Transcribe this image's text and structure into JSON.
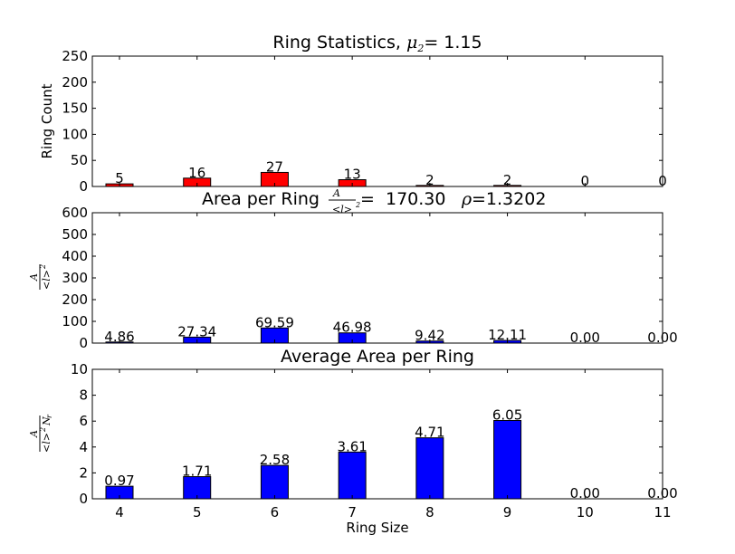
{
  "chart_data": [
    {
      "type": "bar",
      "title": "Ring Statistics, ",
      "title_math": "μ",
      "title_math_sub": "2",
      "title_suffix": "=  1.15",
      "ylabel": "Ring Count",
      "xlabel": "",
      "categories": [
        "4",
        "5",
        "6",
        "7",
        "8",
        "9",
        "10",
        "11"
      ],
      "values": [
        5,
        16,
        27,
        13,
        2,
        2,
        0,
        0
      ],
      "data_labels": [
        "5",
        "16",
        "27",
        "13",
        "2",
        "2",
        "0",
        "0"
      ],
      "ylim": [
        0,
        250
      ],
      "yticks": [
        "0",
        "50",
        "100",
        "150",
        "200",
        "250"
      ],
      "color": "#ff0000",
      "grid": false
    },
    {
      "type": "bar",
      "title": "Area per Ring ",
      "title_math_num": "A",
      "title_math_den": "<l>",
      "title_math_den_sup": "2",
      "title_suffix": "=  170.30 ",
      "title_rho": "ρ",
      "title_rho_value": "=1.3202",
      "ylabel_num": "A",
      "ylabel_den": "<l>",
      "ylabel_den_sup": "2",
      "xlabel": "",
      "categories": [
        "4",
        "5",
        "6",
        "7",
        "8",
        "9",
        "10",
        "11"
      ],
      "values": [
        4.86,
        27.34,
        69.59,
        46.98,
        9.42,
        12.11,
        0.0,
        0.0
      ],
      "data_labels": [
        "4.86",
        "27.34",
        "69.59",
        "46.98",
        "9.42",
        "12.11",
        "0.00",
        "0.00"
      ],
      "ylim": [
        0,
        600
      ],
      "yticks": [
        "0",
        "100",
        "200",
        "300",
        "400",
        "500",
        "600"
      ],
      "color": "#0000ff",
      "grid": false
    },
    {
      "type": "bar",
      "title": "Average Area per Ring",
      "ylabel_num": "A",
      "ylabel_den": "<l>",
      "ylabel_den_sup": "2",
      "ylabel_den_n": "N",
      "ylabel_den_n_sub": "r",
      "xlabel": "Ring Size",
      "categories": [
        "4",
        "5",
        "6",
        "7",
        "8",
        "9",
        "10",
        "11"
      ],
      "values": [
        0.97,
        1.71,
        2.58,
        3.61,
        4.71,
        6.05,
        0.0,
        0.0
      ],
      "data_labels": [
        "0.97",
        "1.71",
        "2.58",
        "3.61",
        "4.71",
        "6.05",
        "0.00",
        "0.00"
      ],
      "ylim": [
        0,
        10
      ],
      "yticks": [
        "0",
        "2",
        "4",
        "6",
        "8",
        "10"
      ],
      "color": "#0000ff",
      "grid": false
    }
  ]
}
